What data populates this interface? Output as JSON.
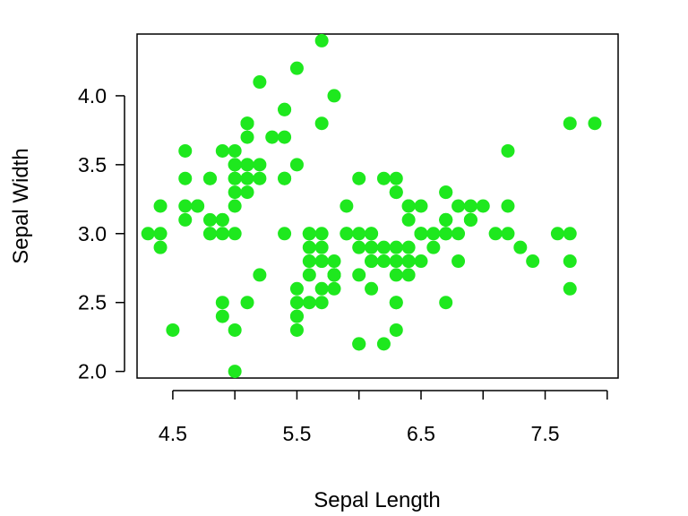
{
  "chart_data": {
    "type": "scatter",
    "title": "",
    "xlabel": "Sepal Length",
    "ylabel": "Sepal Width",
    "xlim": [
      4.212,
      8.088
    ],
    "ylim": [
      1.952,
      4.448
    ],
    "x_ticks": [
      4.5,
      5.5,
      6.5,
      7.5
    ],
    "x_tick_labels": [
      "4.5",
      "5.5",
      "6.5",
      "7.5"
    ],
    "y_ticks": [
      2.0,
      2.5,
      3.0,
      3.5,
      4.0
    ],
    "y_tick_labels": [
      "2.0",
      "2.5",
      "3.0",
      "3.5",
      "4.0"
    ],
    "grid": false,
    "point_color": "#1ee81e",
    "series": [
      {
        "x": [
          5.1,
          4.9,
          4.7,
          4.6,
          5.0,
          5.4,
          4.6,
          5.0,
          4.4,
          4.9,
          5.4,
          4.8,
          4.8,
          4.3,
          5.8,
          5.7,
          5.4,
          5.1,
          5.7,
          5.1,
          5.4,
          5.1,
          4.6,
          5.1,
          4.8,
          5.0,
          5.0,
          5.2,
          5.2,
          4.7,
          4.8,
          5.4,
          5.2,
          5.5,
          4.9,
          5.0,
          5.5,
          4.9,
          4.4,
          5.1,
          5.0,
          4.5,
          4.4,
          5.0,
          5.1,
          4.8,
          5.1,
          4.6,
          5.3,
          5.0,
          7.0,
          6.4,
          6.9,
          5.5,
          6.5,
          5.7,
          6.3,
          4.9,
          6.6,
          5.2,
          5.0,
          5.9,
          6.0,
          6.1,
          5.6,
          6.7,
          5.6,
          5.8,
          6.2,
          5.6,
          5.9,
          6.1,
          6.3,
          6.1,
          6.4,
          6.6,
          6.8,
          6.7,
          6.0,
          5.7,
          5.5,
          5.5,
          5.8,
          6.0,
          5.4,
          6.0,
          6.7,
          6.3,
          5.6,
          5.5,
          5.5,
          6.1,
          5.8,
          5.0,
          5.6,
          5.7,
          5.7,
          6.2,
          5.1,
          5.7,
          6.3,
          5.8,
          7.1,
          6.3,
          6.5,
          7.6,
          4.9,
          7.3,
          6.7,
          7.2,
          6.5,
          6.4,
          6.8,
          5.7,
          5.8,
          6.4,
          6.5,
          7.7,
          7.7,
          6.0,
          6.9,
          5.6,
          7.7,
          6.3,
          6.7,
          7.2,
          6.2,
          6.1,
          6.4,
          7.2,
          7.4,
          7.9,
          6.4,
          6.3,
          6.1,
          7.7,
          6.3,
          6.4,
          6.0,
          6.9,
          6.7,
          6.9,
          5.8,
          6.8,
          6.7,
          6.7,
          6.3,
          6.5,
          6.2,
          5.9
        ],
        "y": [
          3.5,
          3.0,
          3.2,
          3.1,
          3.6,
          3.9,
          3.4,
          3.4,
          2.9,
          3.1,
          3.7,
          3.4,
          3.0,
          3.0,
          4.0,
          4.4,
          3.9,
          3.5,
          3.8,
          3.8,
          3.4,
          3.7,
          3.6,
          3.3,
          3.4,
          3.0,
          3.4,
          3.5,
          3.4,
          3.2,
          3.1,
          3.4,
          4.1,
          4.2,
          3.1,
          3.2,
          3.5,
          3.6,
          3.0,
          3.4,
          3.5,
          2.3,
          3.2,
          3.5,
          3.8,
          3.0,
          3.8,
          3.2,
          3.7,
          3.3,
          3.2,
          3.2,
          3.1,
          2.3,
          2.8,
          2.8,
          3.3,
          2.4,
          2.9,
          2.7,
          2.0,
          3.0,
          2.2,
          2.9,
          2.9,
          3.1,
          3.0,
          2.7,
          2.2,
          2.5,
          3.2,
          2.8,
          2.5,
          2.8,
          2.9,
          3.0,
          2.8,
          3.0,
          2.9,
          2.6,
          2.4,
          2.4,
          2.7,
          2.7,
          3.0,
          3.4,
          3.1,
          2.3,
          3.0,
          2.5,
          2.6,
          3.0,
          2.6,
          2.3,
          2.7,
          3.0,
          2.9,
          2.9,
          2.5,
          2.8,
          3.3,
          2.7,
          3.0,
          2.9,
          3.0,
          3.0,
          2.5,
          2.9,
          2.5,
          3.6,
          3.2,
          2.7,
          3.0,
          2.5,
          2.8,
          3.2,
          3.0,
          3.8,
          2.6,
          2.2,
          3.2,
          2.8,
          2.8,
          2.7,
          3.3,
          3.2,
          2.8,
          3.0,
          2.8,
          3.0,
          2.8,
          3.8,
          2.8,
          2.8,
          2.6,
          3.0,
          3.4,
          3.1,
          3.0,
          3.1,
          3.1,
          3.1,
          2.7,
          3.2,
          3.3,
          3.0,
          2.5,
          3.0,
          3.4,
          3.0
        ]
      }
    ]
  }
}
